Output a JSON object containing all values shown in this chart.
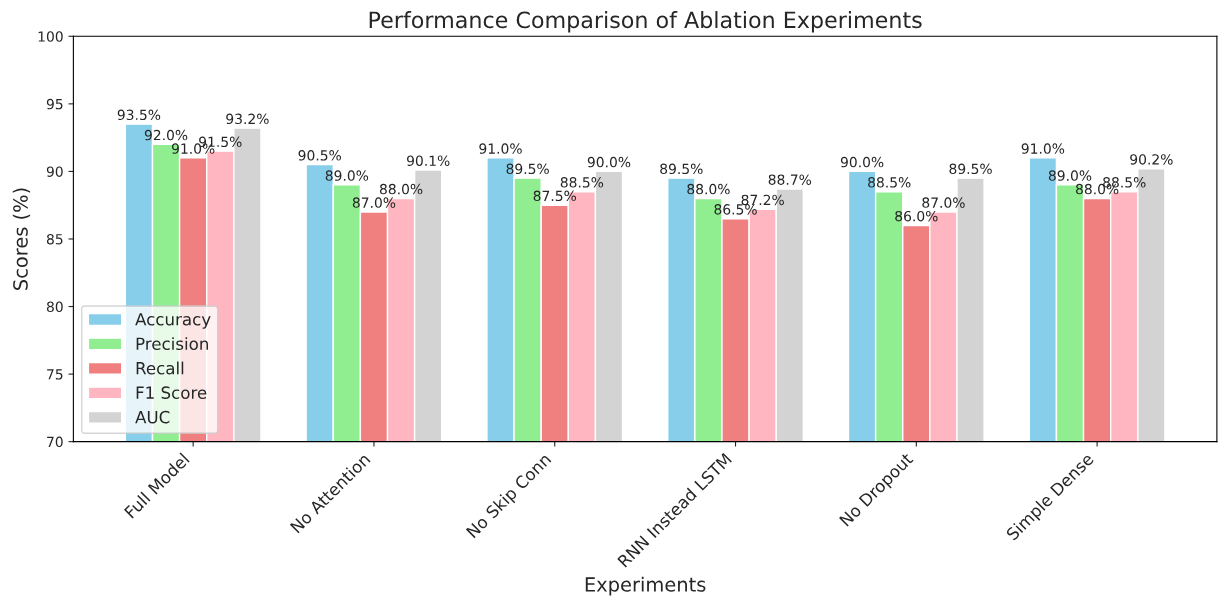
{
  "chart_data": {
    "type": "bar",
    "title": "Performance Comparison of Ablation Experiments",
    "xlabel": "Experiments",
    "ylabel": "Scores (%)",
    "categories": [
      "Full Model",
      "No Attention",
      "No Skip Conn",
      "RNN Instead LSTM",
      "No Dropout",
      "Simple Dense"
    ],
    "series": [
      {
        "name": "Accuracy",
        "color": "#87ceeb",
        "values": [
          93.5,
          90.5,
          91.0,
          89.5,
          90.0,
          91.0
        ],
        "value_labels": [
          "93.5%",
          "90.5%",
          "91.0%",
          "89.5%",
          "90.0%",
          "91.0%"
        ]
      },
      {
        "name": "Precision",
        "color": "#90ee90",
        "values": [
          92.0,
          89.0,
          89.5,
          88.0,
          88.5,
          89.0
        ],
        "value_labels": [
          "92.0%",
          "89.0%",
          "89.5%",
          "88.0%",
          "88.5%",
          "89.0%"
        ]
      },
      {
        "name": "Recall",
        "color": "#f08080",
        "values": [
          91.0,
          87.0,
          87.5,
          86.5,
          86.0,
          88.0
        ],
        "value_labels": [
          "91.0%",
          "87.0%",
          "87.5%",
          "86.5%",
          "86.0%",
          "88.0%"
        ]
      },
      {
        "name": "F1 Score",
        "color": "#ffb6c1",
        "values": [
          91.5,
          88.0,
          88.5,
          87.2,
          87.0,
          88.5
        ],
        "value_labels": [
          "91.5%",
          "88.0%",
          "88.5%",
          "87.2%",
          "87.0%",
          "88.5%"
        ]
      },
      {
        "name": "AUC",
        "color": "#d3d3d3",
        "values": [
          93.2,
          90.1,
          90.0,
          88.7,
          89.5,
          90.2
        ],
        "value_labels": [
          "93.2%",
          "90.1%",
          "90.0%",
          "88.7%",
          "89.5%",
          "90.2%"
        ]
      }
    ],
    "ylim": [
      70,
      100
    ],
    "yticks": [
      70,
      75,
      80,
      85,
      90,
      95,
      100
    ],
    "legend": "bottom left"
  }
}
